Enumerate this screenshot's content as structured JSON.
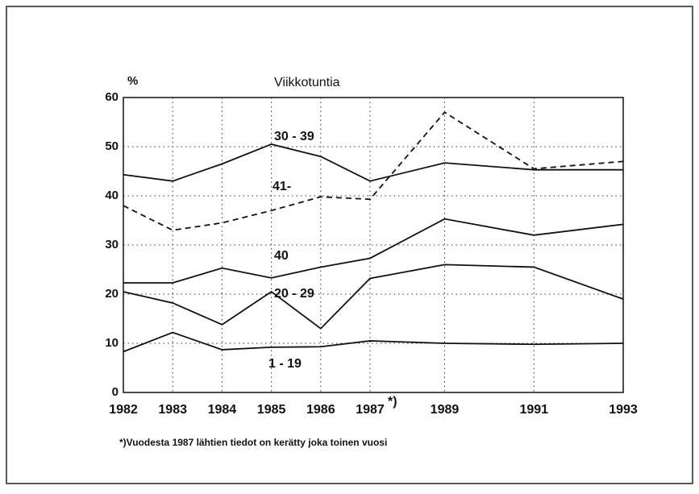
{
  "chart_data": {
    "type": "line",
    "title": "Viikkotuntia",
    "y_label": "%",
    "note_marker": "*)",
    "footnote": "*)Vuodesta 1987 lähtien tiedot on kerätty joka toinen vuosi",
    "categories": [
      "1982",
      "1983",
      "1984",
      "1985",
      "1986",
      "1987",
      "1989",
      "1991",
      "1993"
    ],
    "ylim": [
      0,
      60
    ],
    "yticks": [
      0,
      10,
      20,
      30,
      40,
      50,
      60
    ],
    "grid": true,
    "series": [
      {
        "name": "30 - 39",
        "color": "#111111",
        "dashed": false,
        "values": [
          44.3,
          43,
          46.5,
          50.5,
          48,
          43,
          46.7,
          45.3,
          45.3
        ]
      },
      {
        "name": "41-",
        "color": "#111111",
        "dashed": true,
        "values": [
          38,
          33,
          34.5,
          37,
          39.8,
          39.3,
          57,
          45.5,
          47
        ]
      },
      {
        "name": "40",
        "color": "#111111",
        "dashed": false,
        "values": [
          22.3,
          22.3,
          25.3,
          23.3,
          25.5,
          27.3,
          35.3,
          32,
          34.2
        ]
      },
      {
        "name": "20 - 29",
        "color": "#111111",
        "dashed": false,
        "values": [
          20.5,
          18.2,
          13.8,
          20.5,
          13,
          23.2,
          26,
          25.5,
          19
        ]
      },
      {
        "name": "1 - 19",
        "color": "#111111",
        "dashed": false,
        "values": [
          8.3,
          12.2,
          8.7,
          9.2,
          9.3,
          10.5,
          10,
          9.8,
          10
        ]
      }
    ]
  }
}
